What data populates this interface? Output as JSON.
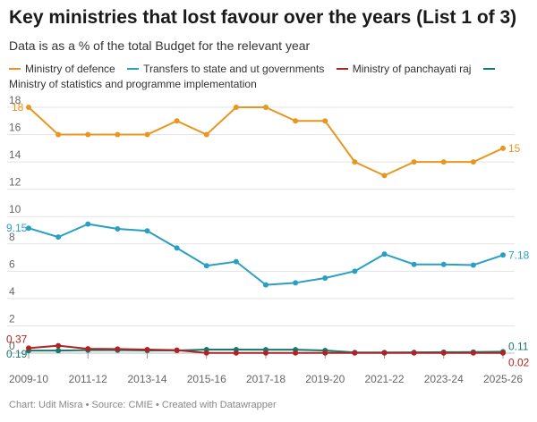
{
  "title": "Key ministries that lost favour over the years (List 1 of 3)",
  "subtitle": "Data is as a % of the total Budget for the relevant year",
  "footer": "Chart: Udit Misra • Source: CMIE • Created with Datawrapper",
  "colors": {
    "defence": "#e8961e",
    "transfers": "#2a9fc4",
    "panchayati": "#b22222",
    "statistics": "#137a6f",
    "grid": "#e3e3e3",
    "axis_text": "#666666"
  },
  "chart_data": {
    "type": "line",
    "title": "Key ministries that lost favour over the years (List 1 of 3)",
    "subtitle": "Data is as a % of the total Budget for the relevant year",
    "xlabel": "",
    "ylabel": "",
    "ylim": [
      0,
      18
    ],
    "yticks": [
      "0",
      "2",
      "4",
      "6",
      "8",
      "10",
      "12",
      "14",
      "16",
      "18"
    ],
    "x": [
      "2009-10",
      "2010-11",
      "2011-12",
      "2012-13",
      "2013-14",
      "2014-15",
      "2015-16",
      "2016-17",
      "2017-18",
      "2018-19",
      "2019-20",
      "2020-21",
      "2021-22",
      "2022-23",
      "2023-24",
      "2024-25",
      "2025-26"
    ],
    "xtick_labels": [
      "2009-10",
      "2011-12",
      "2013-14",
      "2015-16",
      "2017-18",
      "2019-20",
      "2021-22",
      "2023-24",
      "2025-26"
    ],
    "legend_position": "top",
    "series": [
      {
        "key": "defence",
        "name": "Ministry of defence",
        "values": [
          18,
          16,
          16,
          16,
          16,
          17,
          16,
          18,
          18,
          17,
          17,
          14,
          13,
          14,
          14,
          14,
          15
        ],
        "start_label": "18",
        "end_label": "15"
      },
      {
        "key": "transfers",
        "name": "Transfers to state and ut governments",
        "values": [
          9.15,
          8.5,
          9.45,
          9.1,
          8.95,
          7.7,
          6.4,
          6.7,
          5.0,
          5.15,
          5.5,
          6.0,
          7.25,
          6.5,
          6.5,
          6.45,
          7.18
        ],
        "start_label": "9.15",
        "end_label": "7.18"
      },
      {
        "key": "panchayati",
        "name": "Ministry of panchayati raj",
        "values": [
          0.37,
          0.55,
          0.32,
          0.3,
          0.26,
          0.22,
          0.02,
          0.02,
          0.02,
          0.02,
          0.02,
          0.02,
          0.02,
          0.02,
          0.02,
          0.02,
          0.02
        ],
        "start_label": "0.37",
        "end_label": "0.02"
      },
      {
        "key": "statistics",
        "name": "Ministry of statistics and programme implementation",
        "values": [
          0.19,
          0.19,
          0.22,
          0.22,
          0.2,
          0.2,
          0.26,
          0.26,
          0.25,
          0.25,
          0.2,
          0.05,
          0.05,
          0.06,
          0.07,
          0.08,
          0.11
        ],
        "start_label": "0.19",
        "end_label": "0.11"
      }
    ]
  }
}
